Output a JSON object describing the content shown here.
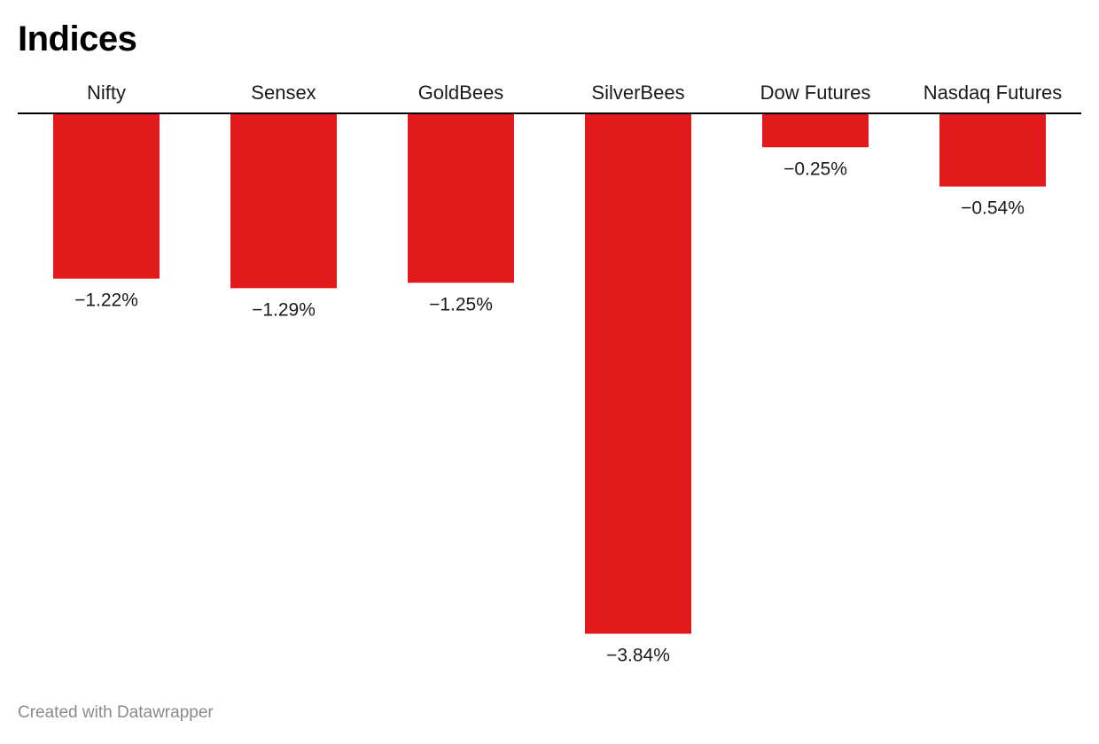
{
  "chart_data": {
    "type": "bar",
    "title": "Indices",
    "categories": [
      "Nifty",
      "Sensex",
      "GoldBees",
      "SilverBees",
      "Dow Futures",
      "Nasdaq Futures"
    ],
    "values": [
      -1.22,
      -1.29,
      -1.25,
      -3.84,
      -0.25,
      -0.54
    ],
    "value_labels": [
      "−1.22%",
      "−1.29%",
      "−1.25%",
      "−3.84%",
      "−0.25%",
      "−0.54%"
    ],
    "unit": "%",
    "xlabel": "",
    "ylabel": "",
    "ylim": [
      -3.84,
      0
    ],
    "grid": false,
    "bar_color": "#e31a1c",
    "axis_color": "#000000"
  },
  "footer": {
    "credit": "Created with Datawrapper"
  }
}
